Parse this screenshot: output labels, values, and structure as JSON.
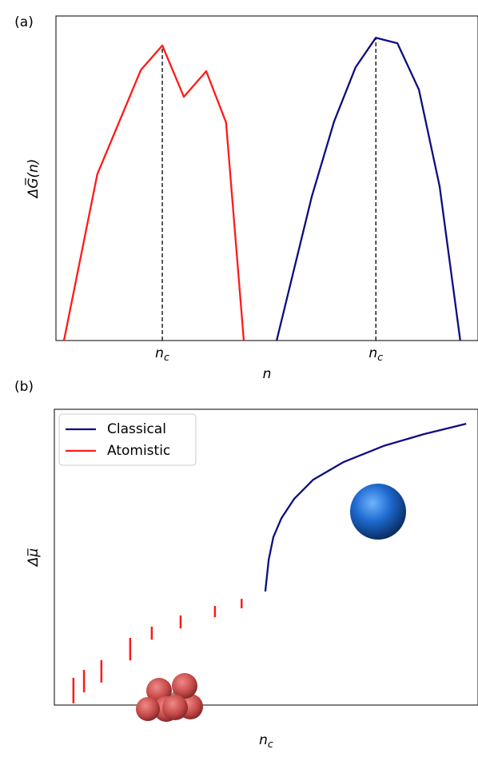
{
  "chart_data": [
    {
      "type": "line",
      "panel_label": "(a)",
      "x_label": "n",
      "y_label": "ΔG̅(n)",
      "xlim": [
        0,
        100
      ],
      "ylim": [
        0,
        100
      ],
      "xticks": [
        {
          "value": 25.2,
          "label": "n_c",
          "color": "#ff0000"
        },
        {
          "value": 75.8,
          "label": "n_c",
          "color": "#0000ff"
        }
      ],
      "series": [
        {
          "color": "#ff1a1a",
          "x": [
            1.9,
            9.8,
            20.1,
            25.2,
            30.3,
            35.6,
            40.3,
            44.5
          ],
          "values": [
            0,
            51.2,
            83.3,
            90.9,
            75.1,
            83.0,
            67.2,
            0
          ]
        },
        {
          "color": "#0d0d80",
          "x": [
            52.3,
            60.6,
            65.9,
            71.0,
            75.8,
            80.9,
            86.0,
            90.9,
            95.8
          ],
          "values": [
            0,
            44.3,
            67.5,
            84.2,
            93.3,
            91.6,
            77.3,
            47.5,
            0
          ]
        }
      ]
    },
    {
      "type": "line",
      "panel_label": "(b)",
      "x_label": "n_c",
      "y_label": "Δμ̅",
      "xlim": [
        0,
        100
      ],
      "ylim": [
        0,
        100
      ],
      "legend": "upper left",
      "series": [
        {
          "name": "Classical",
          "color": "#0d0d80",
          "x": [
            49.8,
            50.6,
            51.7,
            53.6,
            56.6,
            61.1,
            68.3,
            77.7,
            87.2,
            97.2
          ],
          "values": [
            38.4,
            49.2,
            56.8,
            63.2,
            69.7,
            76.2,
            82.2,
            87.6,
            91.6,
            95.1
          ]
        },
        {
          "name": "Atomistic",
          "color": "#ff1a1a",
          "kind": "errorbar",
          "x": [
            4.5,
            7.0,
            11.1,
            17.9,
            23.0,
            29.8,
            37.9,
            44.2
          ],
          "values": [
            4.9,
            8.1,
            11.4,
            18.9,
            24.3,
            28.1,
            31.6,
            34.3
          ],
          "errors": [
            4.3,
            3.8,
            3.8,
            3.8,
            2.2,
            2.2,
            1.9,
            1.6
          ]
        }
      ]
    }
  ]
}
